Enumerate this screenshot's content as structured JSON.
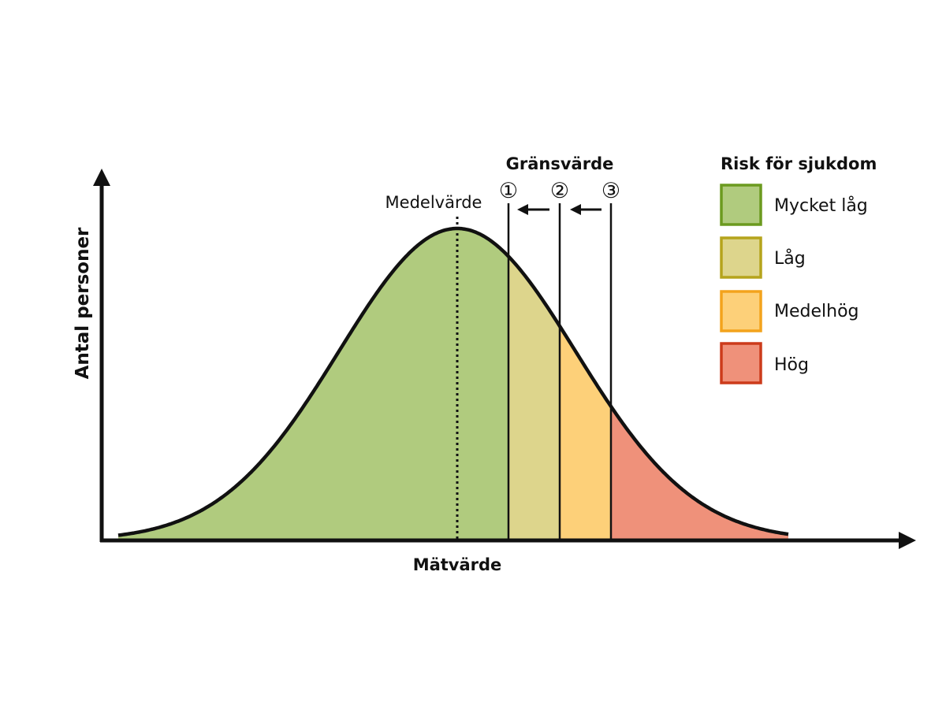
{
  "diagram": {
    "x_axis_label": "Mätvärde",
    "y_axis_label": "Antal personer",
    "mean_label": "Medelvärde",
    "threshold_title": "Gränsvärde",
    "threshold_markers": [
      "①",
      "②",
      "③"
    ]
  },
  "legend": {
    "title": "Risk för sjukdom",
    "items": [
      {
        "label": "Mycket låg",
        "fill": "#b0cb7e",
        "stroke": "#6b9a1f"
      },
      {
        "label": "Låg",
        "fill": "#ddd58c",
        "stroke": "#b5a41c"
      },
      {
        "label": "Medelhög",
        "fill": "#fdd079",
        "stroke": "#f3a31c"
      },
      {
        "label": "Hög",
        "fill": "#ef917a",
        "stroke": "#cc3b1b"
      }
    ]
  }
}
